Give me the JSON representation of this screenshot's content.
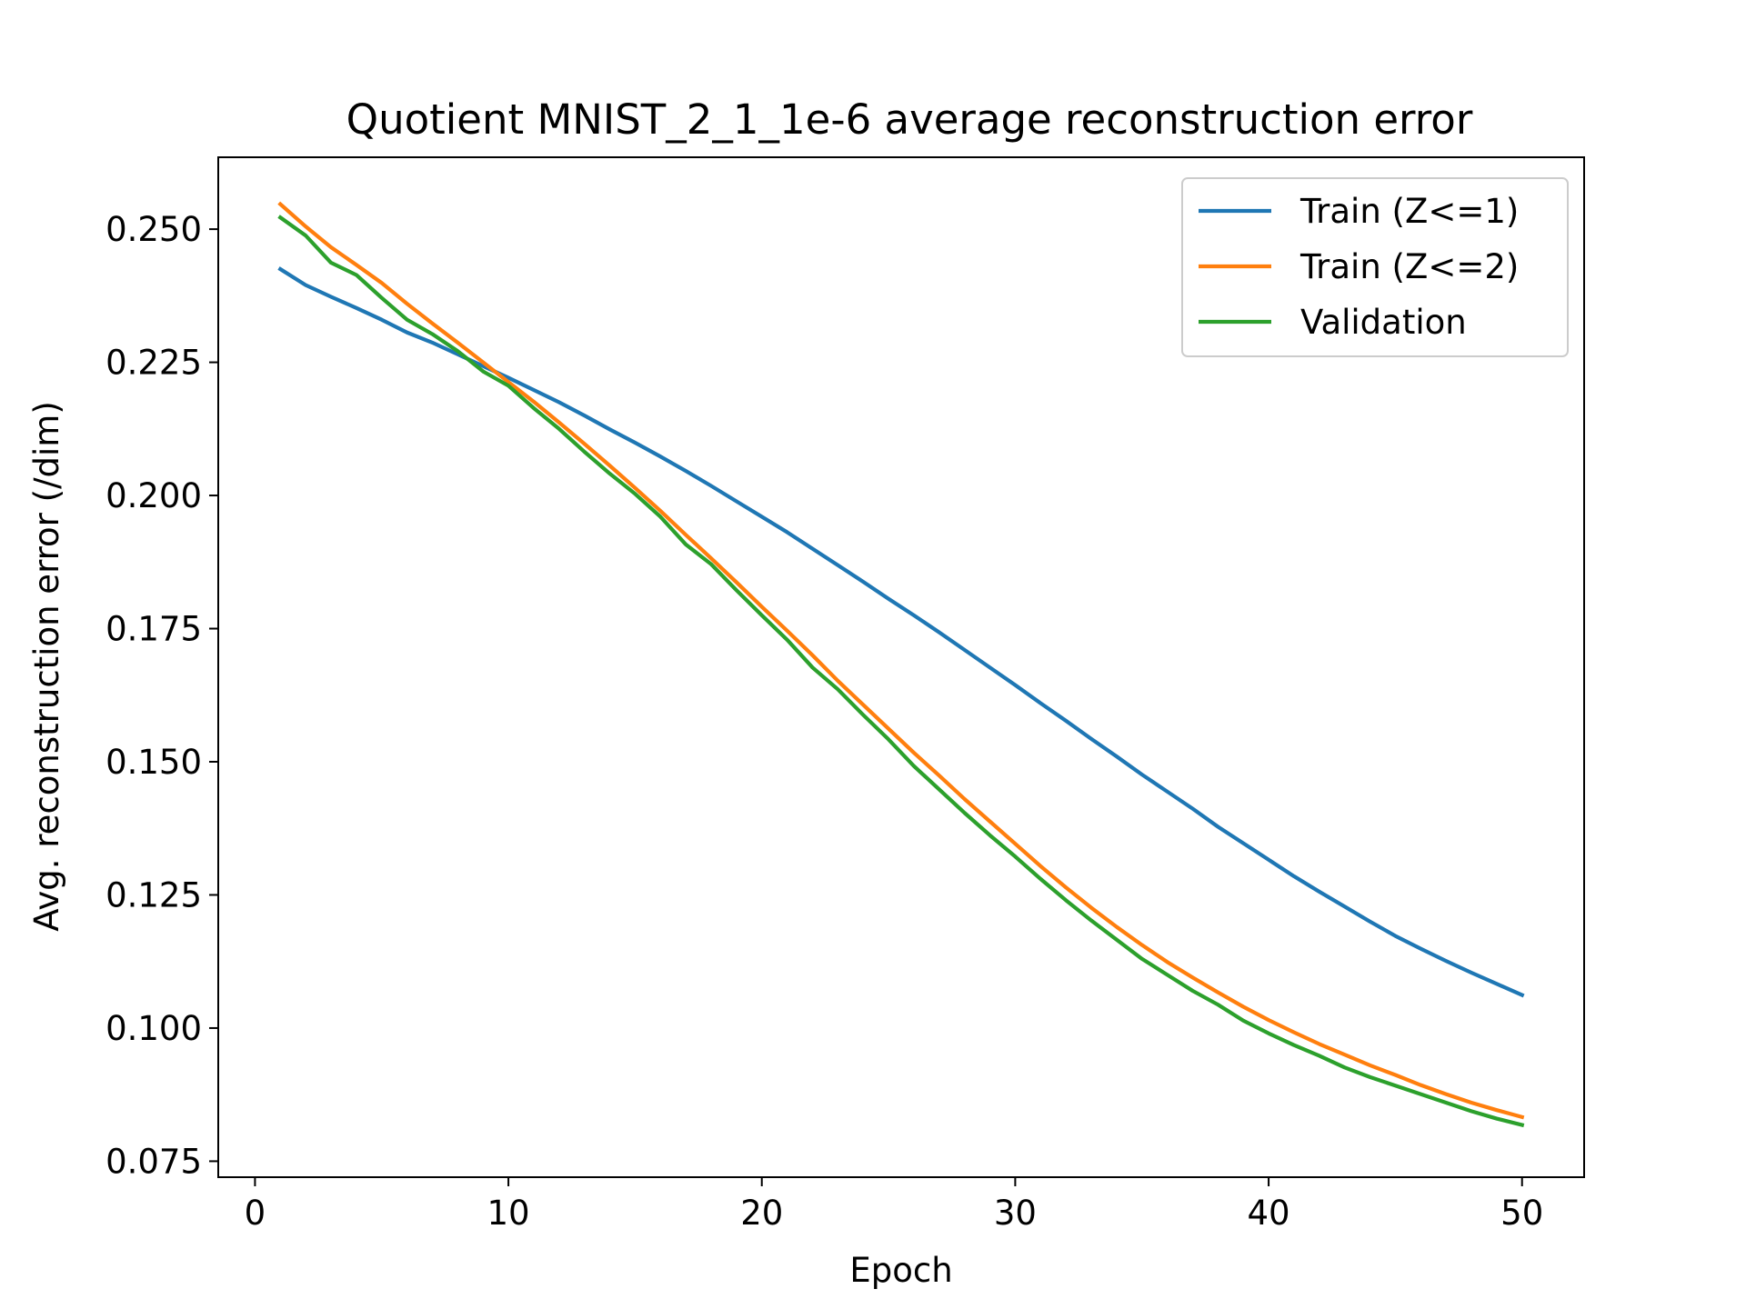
{
  "chart_data": {
    "type": "line",
    "title": "Quotient MNIST_2_1_1e-6 average reconstruction error",
    "xlabel": "Epoch",
    "ylabel": "Avg. reconstruction error (/dim)",
    "xlim": [
      -1.45,
      52.45
    ],
    "ylim": [
      0.072,
      0.2635
    ],
    "xticks": [
      0,
      10,
      20,
      30,
      40,
      50
    ],
    "xtick_labels": [
      "0",
      "10",
      "20",
      "30",
      "40",
      "50"
    ],
    "yticks": [
      0.075,
      0.1,
      0.125,
      0.15,
      0.175,
      0.2,
      0.225,
      0.25
    ],
    "ytick_labels": [
      "0.075",
      "0.100",
      "0.125",
      "0.150",
      "0.175",
      "0.200",
      "0.225",
      "0.250"
    ],
    "grid": false,
    "legend_position": "top-right",
    "x": [
      1,
      2,
      3,
      4,
      5,
      6,
      7,
      8,
      9,
      10,
      11,
      12,
      13,
      14,
      15,
      16,
      17,
      18,
      19,
      20,
      21,
      22,
      23,
      24,
      25,
      26,
      27,
      28,
      29,
      30,
      31,
      32,
      33,
      34,
      35,
      36,
      37,
      38,
      39,
      40,
      41,
      42,
      43,
      44,
      45,
      46,
      47,
      48,
      49,
      50
    ],
    "series": [
      {
        "name": "Train (Z<=1)",
        "color": "#1f77b4",
        "values": [
          0.2425,
          0.2395,
          0.2373,
          0.2352,
          0.233,
          0.2306,
          0.2287,
          0.2265,
          0.2243,
          0.2221,
          0.2198,
          0.2175,
          0.215,
          0.2124,
          0.2099,
          0.2073,
          0.2046,
          0.2018,
          0.1989,
          0.196,
          0.1931,
          0.19,
          0.1869,
          0.1838,
          0.1806,
          0.1775,
          0.1743,
          0.171,
          0.1677,
          0.1644,
          0.161,
          0.1577,
          0.1543,
          0.151,
          0.1476,
          0.1444,
          0.1412,
          0.1378,
          0.1347,
          0.1316,
          0.1285,
          0.1256,
          0.1228,
          0.12,
          0.1173,
          0.1149,
          0.1126,
          0.1104,
          0.1083,
          0.1062
        ]
      },
      {
        "name": "Train (Z<=2)",
        "color": "#ff7f0e",
        "values": [
          0.2547,
          0.2505,
          0.2466,
          0.2433,
          0.2399,
          0.236,
          0.2323,
          0.2287,
          0.225,
          0.2213,
          0.2176,
          0.2137,
          0.2097,
          0.2056,
          0.2014,
          0.1971,
          0.1926,
          0.1882,
          0.1837,
          0.1791,
          0.1746,
          0.17,
          0.1652,
          0.1607,
          0.1562,
          0.1517,
          0.1474,
          0.143,
          0.1388,
          0.1346,
          0.1304,
          0.1264,
          0.1226,
          0.119,
          0.1156,
          0.1124,
          0.1095,
          0.1067,
          0.104,
          0.1015,
          0.0992,
          0.097,
          0.095,
          0.093,
          0.0912,
          0.0893,
          0.0876,
          0.086,
          0.0846,
          0.0833
        ]
      },
      {
        "name": "Validation",
        "color": "#2ca02c",
        "values": [
          0.2522,
          0.2488,
          0.2437,
          0.2414,
          0.2371,
          0.233,
          0.2303,
          0.2271,
          0.2233,
          0.2206,
          0.2164,
          0.2125,
          0.2082,
          0.2041,
          0.2003,
          0.196,
          0.1908,
          0.1871,
          0.1822,
          0.1775,
          0.1729,
          0.1677,
          0.1636,
          0.1588,
          0.1542,
          0.1492,
          0.1448,
          0.1404,
          0.1362,
          0.1322,
          0.128,
          0.124,
          0.1202,
          0.1166,
          0.113,
          0.11,
          0.107,
          0.1044,
          0.1014,
          0.099,
          0.0968,
          0.0948,
          0.0926,
          0.0908,
          0.0892,
          0.0876,
          0.086,
          0.0844,
          0.083,
          0.0818
        ]
      }
    ]
  }
}
